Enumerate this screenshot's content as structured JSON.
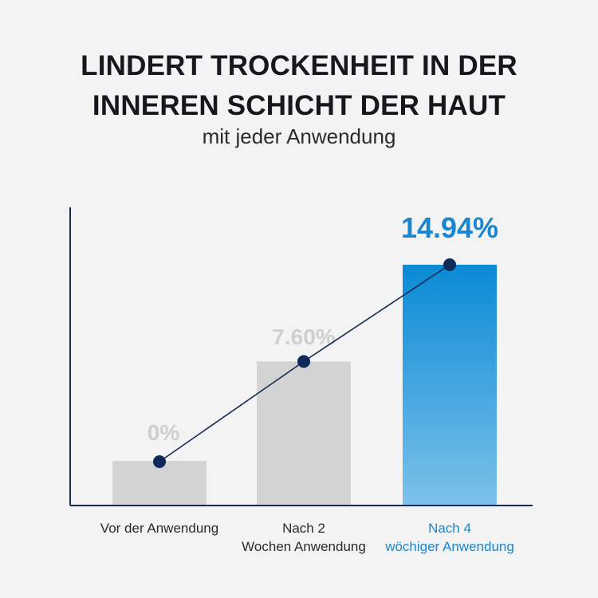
{
  "header": {
    "title_line1": "LINDERT TROCKENHEIT IN DER",
    "title_line2": "INNEREN SCHICHT DER HAUT",
    "subtitle": "mit jeder Anwendung"
  },
  "chart_data": {
    "type": "bar",
    "title": "LINDERT TROCKENHEIT IN DER INNEREN SCHICHT DER HAUT",
    "subtitle": "mit jeder Anwendung",
    "categories": [
      [
        "Vor der Anwendung"
      ],
      [
        "Nach 2",
        "Wochen Anwendung"
      ],
      [
        "Nach 4",
        "wöchiger Anwendung"
      ]
    ],
    "values": [
      0,
      7.6,
      14.94
    ],
    "value_labels": [
      "0%",
      "7.60%",
      "14.94%"
    ],
    "unit": "%",
    "overlay": "line with markers connecting bar tops",
    "highlight_index": 2,
    "colors": {
      "bar_default": "#d3d3d3",
      "bar_highlight_top": "#0a8ad6",
      "bar_highlight_bottom": "#7cc2ea",
      "label_default": "#cfcfcf",
      "label_highlight": "#1a86cf",
      "line": "#142a55",
      "marker": "#0f2a5a",
      "axis": "#142a55"
    },
    "grid": false,
    "legend": "none"
  }
}
